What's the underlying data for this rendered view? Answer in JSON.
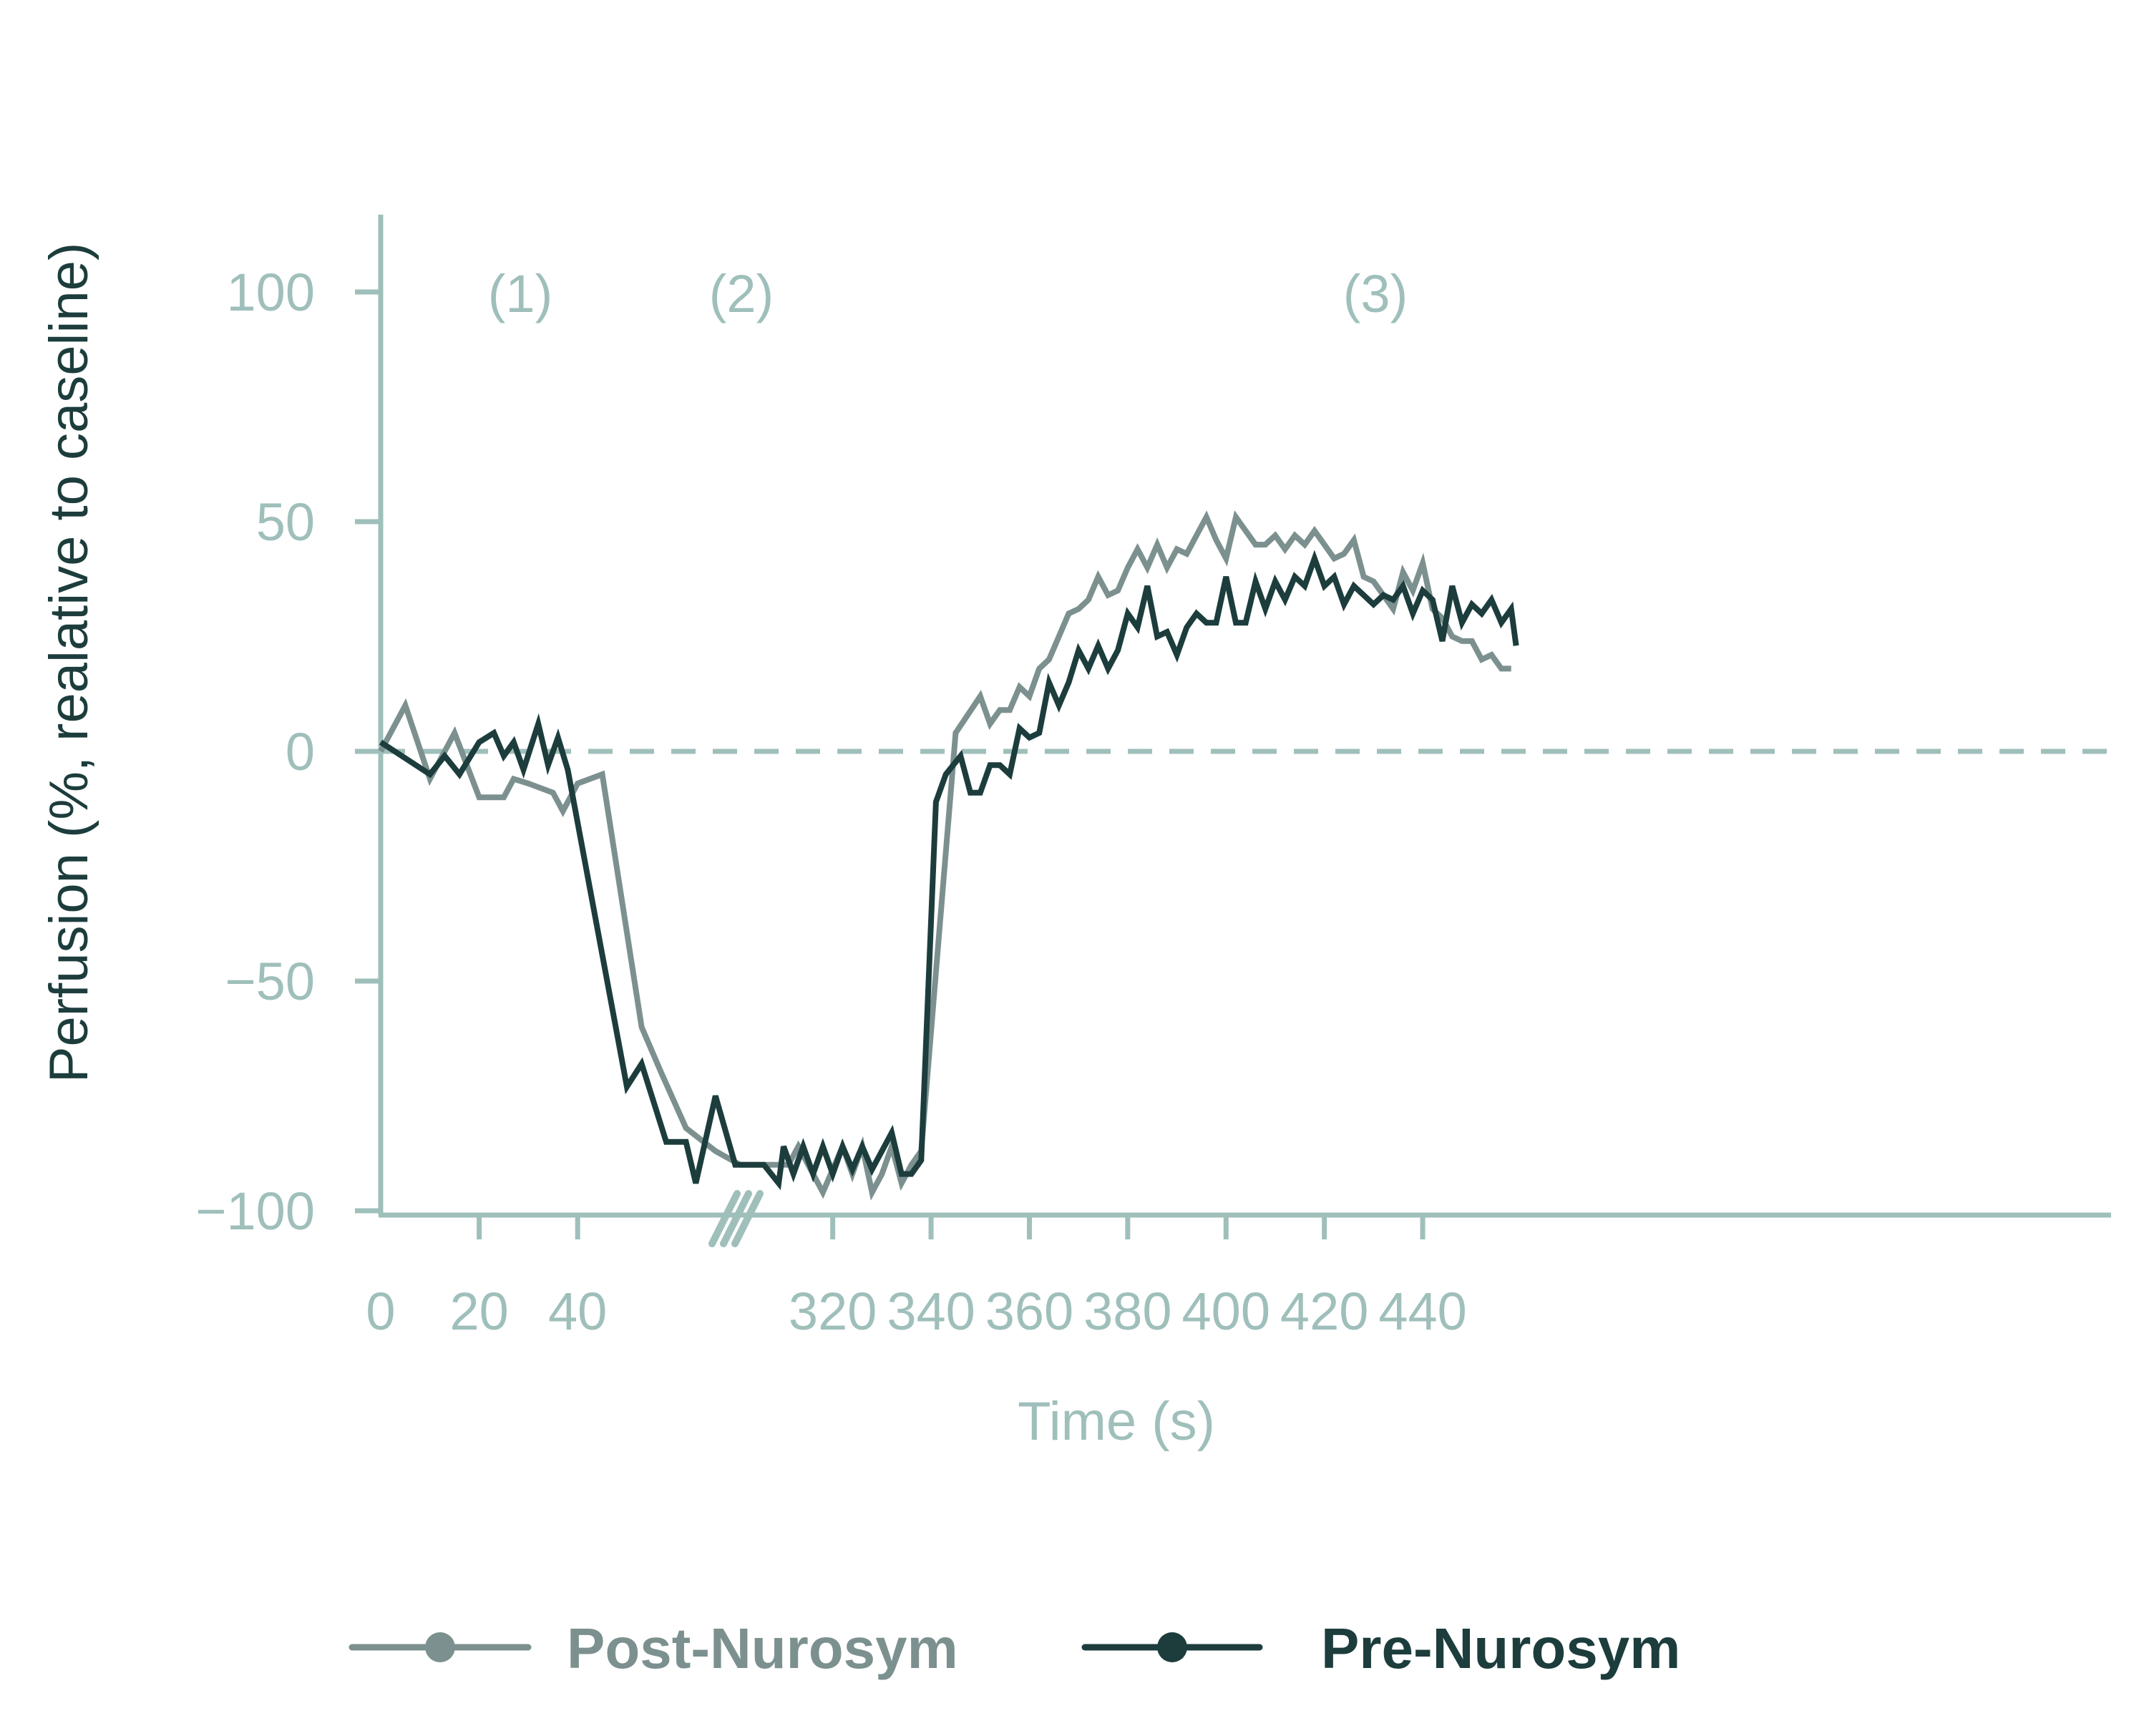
{
  "chart_data": {
    "type": "line",
    "xlabel": "Time (s)",
    "ylabel": "Perfusion (%, realative to caseline)",
    "ylim": [
      -100,
      115
    ],
    "yticks": [
      100,
      50,
      0,
      -50,
      -100
    ],
    "x_ticks": [
      "0",
      "20",
      "40",
      "320",
      "340",
      "360",
      "380",
      "400",
      "420",
      "440"
    ],
    "x_axis_break": "between 40 and 320",
    "reference_line": {
      "y": 0,
      "style": "dashed"
    },
    "phase_labels": [
      "(1)",
      "(2)",
      "(3)"
    ],
    "grid": false,
    "legend_position": "bottom",
    "colors": {
      "axis": "#9fbfbb",
      "post": "#7c918f",
      "pre": "#1d3d3d",
      "ylabel": "#1d3d3d"
    },
    "series": [
      {
        "name": "Post-Nurosym",
        "points": [
          [
            0,
            0
          ],
          [
            5,
            10
          ],
          [
            10,
            -6
          ],
          [
            15,
            4
          ],
          [
            20,
            -10
          ],
          [
            25,
            -10
          ],
          [
            27,
            -6
          ],
          [
            30,
            -7
          ],
          [
            35,
            -9
          ],
          [
            37,
            -13
          ],
          [
            40,
            -7
          ],
          [
            45,
            -5
          ],
          [
            53,
            -60
          ],
          [
            57,
            -70
          ],
          [
            62,
            -82
          ],
          [
            68,
            -87
          ],
          [
            73,
            -90
          ],
          [
            304,
            -90
          ],
          [
            311,
            -90
          ],
          [
            313,
            -86
          ],
          [
            316,
            -92
          ],
          [
            318,
            -96
          ],
          [
            320,
            -91
          ],
          [
            322,
            -86
          ],
          [
            324,
            -92
          ],
          [
            326,
            -86
          ],
          [
            328,
            -96
          ],
          [
            330,
            -92
          ],
          [
            332,
            -86
          ],
          [
            334,
            -94
          ],
          [
            336,
            -90
          ],
          [
            338,
            -87
          ],
          [
            345,
            4
          ],
          [
            350,
            12
          ],
          [
            352,
            6
          ],
          [
            354,
            9
          ],
          [
            356,
            9
          ],
          [
            358,
            14
          ],
          [
            360,
            12
          ],
          [
            362,
            18
          ],
          [
            364,
            20
          ],
          [
            366,
            25
          ],
          [
            368,
            30
          ],
          [
            370,
            31
          ],
          [
            372,
            33
          ],
          [
            374,
            38
          ],
          [
            376,
            34
          ],
          [
            378,
            35
          ],
          [
            380,
            40
          ],
          [
            382,
            44
          ],
          [
            384,
            40
          ],
          [
            386,
            45
          ],
          [
            388,
            40
          ],
          [
            390,
            44
          ],
          [
            392,
            43
          ],
          [
            394,
            47
          ],
          [
            396,
            51
          ],
          [
            398,
            46
          ],
          [
            400,
            42
          ],
          [
            402,
            51
          ],
          [
            404,
            48
          ],
          [
            406,
            45
          ],
          [
            408,
            45
          ],
          [
            410,
            47
          ],
          [
            412,
            44
          ],
          [
            414,
            47
          ],
          [
            416,
            45
          ],
          [
            418,
            48
          ],
          [
            420,
            45
          ],
          [
            422,
            42
          ],
          [
            424,
            43
          ],
          [
            426,
            46
          ],
          [
            428,
            38
          ],
          [
            430,
            37
          ],
          [
            432,
            34
          ],
          [
            434,
            31
          ],
          [
            436,
            39
          ],
          [
            438,
            35
          ],
          [
            440,
            41
          ],
          [
            442,
            31
          ],
          [
            444,
            29
          ],
          [
            446,
            25
          ],
          [
            448,
            24
          ],
          [
            450,
            24
          ],
          [
            452,
            20
          ],
          [
            454,
            21
          ],
          [
            456,
            18
          ],
          [
            458,
            18
          ]
        ]
      },
      {
        "name": "Pre-Nurosym",
        "points": [
          [
            0,
            2
          ],
          [
            10,
            -5
          ],
          [
            13,
            -1
          ],
          [
            16,
            -5
          ],
          [
            20,
            2
          ],
          [
            23,
            4
          ],
          [
            25,
            -1
          ],
          [
            27,
            2
          ],
          [
            29,
            -4
          ],
          [
            32,
            6
          ],
          [
            34,
            -3
          ],
          [
            36,
            3
          ],
          [
            38,
            -4
          ],
          [
            50,
            -73
          ],
          [
            53,
            -68
          ],
          [
            58,
            -85
          ],
          [
            62,
            -85
          ],
          [
            64,
            -94
          ],
          [
            68,
            -75
          ],
          [
            72,
            -90
          ],
          [
            306,
            -90
          ],
          [
            309,
            -94
          ],
          [
            310,
            -86
          ],
          [
            312,
            -92
          ],
          [
            314,
            -86
          ],
          [
            316,
            -92
          ],
          [
            318,
            -86
          ],
          [
            320,
            -92
          ],
          [
            322,
            -86
          ],
          [
            324,
            -91
          ],
          [
            326,
            -86
          ],
          [
            328,
            -91
          ],
          [
            330,
            -87
          ],
          [
            332,
            -83
          ],
          [
            334,
            -92
          ],
          [
            336,
            -92
          ],
          [
            338,
            -89
          ],
          [
            341,
            -11
          ],
          [
            343,
            -5
          ],
          [
            346,
            -1
          ],
          [
            348,
            -9
          ],
          [
            350,
            -9
          ],
          [
            352,
            -3
          ],
          [
            354,
            -3
          ],
          [
            356,
            -5
          ],
          [
            358,
            5
          ],
          [
            360,
            3
          ],
          [
            362,
            4
          ],
          [
            364,
            15
          ],
          [
            366,
            10
          ],
          [
            368,
            15
          ],
          [
            370,
            22
          ],
          [
            372,
            18
          ],
          [
            374,
            23
          ],
          [
            376,
            18
          ],
          [
            378,
            22
          ],
          [
            380,
            30
          ],
          [
            382,
            27
          ],
          [
            384,
            36
          ],
          [
            386,
            25
          ],
          [
            388,
            26
          ],
          [
            390,
            21
          ],
          [
            392,
            27
          ],
          [
            394,
            30
          ],
          [
            396,
            28
          ],
          [
            398,
            28
          ],
          [
            400,
            38
          ],
          [
            402,
            28
          ],
          [
            404,
            28
          ],
          [
            406,
            37
          ],
          [
            408,
            31
          ],
          [
            410,
            37
          ],
          [
            412,
            33
          ],
          [
            414,
            38
          ],
          [
            416,
            36
          ],
          [
            418,
            42
          ],
          [
            420,
            36
          ],
          [
            422,
            38
          ],
          [
            424,
            32
          ],
          [
            426,
            36
          ],
          [
            428,
            34
          ],
          [
            430,
            32
          ],
          [
            432,
            34
          ],
          [
            434,
            33
          ],
          [
            436,
            36
          ],
          [
            438,
            30
          ],
          [
            440,
            35
          ],
          [
            442,
            33
          ],
          [
            444,
            24
          ],
          [
            446,
            36
          ],
          [
            448,
            28
          ],
          [
            450,
            32
          ],
          [
            452,
            30
          ],
          [
            454,
            33
          ],
          [
            456,
            28
          ],
          [
            458,
            31
          ],
          [
            459,
            23
          ]
        ]
      }
    ]
  }
}
